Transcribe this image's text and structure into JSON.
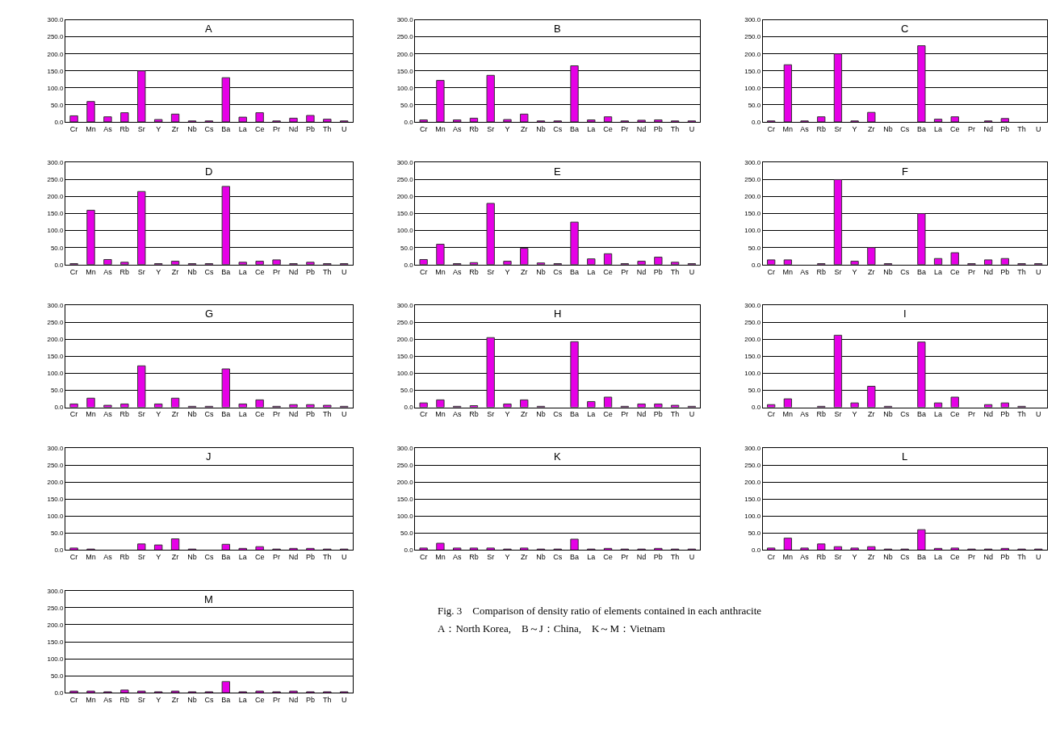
{
  "chart_data": [
    {
      "type": "bar",
      "title": "A",
      "categories": [
        "Cr",
        "Mn",
        "As",
        "Rb",
        "Sr",
        "Y",
        "Zr",
        "Nb",
        "Cs",
        "Ba",
        "La",
        "Ce",
        "Pr",
        "Nd",
        "Pb",
        "Th",
        "U"
      ],
      "values": [
        18,
        60,
        15,
        27,
        150,
        7,
        23,
        3,
        3,
        130,
        14,
        27,
        3,
        11,
        19,
        8,
        3
      ],
      "color": "#e600e6",
      "ylim": [
        0,
        300
      ],
      "yticks": [
        {
          "value": 0,
          "label": "0.0"
        },
        {
          "value": 50,
          "label": "50.0"
        },
        {
          "value": 100,
          "label": "100.0"
        },
        {
          "value": 150,
          "label": "150.0"
        },
        {
          "value": 200,
          "label": "200.0"
        },
        {
          "value": 250,
          "label": "250.0"
        },
        {
          "value": 300,
          "label": "300.0"
        }
      ],
      "grid": "y"
    },
    {
      "type": "bar",
      "title": "B",
      "categories": [
        "Cr",
        "Mn",
        "As",
        "Rb",
        "Sr",
        "Y",
        "Zr",
        "Nb",
        "Cs",
        "Ba",
        "La",
        "Ce",
        "Pr",
        "Nd",
        "Pb",
        "Th",
        "U"
      ],
      "values": [
        6,
        122,
        6,
        11,
        137,
        7,
        23,
        3,
        3,
        165,
        6,
        15,
        3,
        5,
        6,
        3,
        3
      ],
      "color": "#e600e6",
      "ylim": [
        0,
        300
      ],
      "yticks": [
        {
          "value": 0,
          "label": "0.0"
        },
        {
          "value": 50,
          "label": "50.0"
        },
        {
          "value": 100,
          "label": "100.0"
        },
        {
          "value": 150,
          "label": "150.0"
        },
        {
          "value": 200,
          "label": "200.0"
        },
        {
          "value": 250,
          "label": "250.0"
        },
        {
          "value": 300,
          "label": "300.0"
        }
      ],
      "grid": "y"
    },
    {
      "type": "bar",
      "title": "C",
      "categories": [
        "Cr",
        "Mn",
        "As",
        "Rb",
        "Sr",
        "Y",
        "Zr",
        "Nb",
        "Cs",
        "Ba",
        "La",
        "Ce",
        "Pr",
        "Nd",
        "Pb",
        "Th",
        "U"
      ],
      "values": [
        3,
        168,
        3,
        15,
        200,
        3,
        28,
        0,
        0,
        224,
        8,
        15,
        0,
        3,
        10,
        0,
        0
      ],
      "color": "#e600e6",
      "ylim": [
        0,
        300
      ],
      "yticks": [
        {
          "value": 0,
          "label": "0.0"
        },
        {
          "value": 50,
          "label": "50.0"
        },
        {
          "value": 100,
          "label": "100.0"
        },
        {
          "value": 150,
          "label": "150.0"
        },
        {
          "value": 200,
          "label": "200.0"
        },
        {
          "value": 250,
          "label": "250.0"
        },
        {
          "value": 300,
          "label": "300.0"
        }
      ],
      "grid": "y"
    },
    {
      "type": "bar",
      "title": "D",
      "categories": [
        "Cr",
        "Mn",
        "As",
        "Rb",
        "Sr",
        "Y",
        "Zr",
        "Nb",
        "Cs",
        "Ba",
        "La",
        "Ce",
        "Pr",
        "Nd",
        "Pb",
        "Th",
        "U"
      ],
      "values": [
        3,
        160,
        15,
        7,
        215,
        3,
        10,
        3,
        3,
        230,
        7,
        10,
        14,
        3,
        7,
        3,
        3
      ],
      "color": "#e600e6",
      "ylim": [
        0,
        300
      ],
      "yticks": [
        {
          "value": 0,
          "label": "0.0"
        },
        {
          "value": 50,
          "label": "50.0"
        },
        {
          "value": 100,
          "label": "100.0"
        },
        {
          "value": 150,
          "label": "150.0"
        },
        {
          "value": 200,
          "label": "200.0"
        },
        {
          "value": 250,
          "label": "250.0"
        },
        {
          "value": 300,
          "label": "300.0"
        }
      ],
      "grid": "y"
    },
    {
      "type": "bar",
      "title": "E",
      "categories": [
        "Cr",
        "Mn",
        "As",
        "Rb",
        "Sr",
        "Y",
        "Zr",
        "Nb",
        "Cs",
        "Ba",
        "La",
        "Ce",
        "Pr",
        "Nd",
        "Pb",
        "Th",
        "U"
      ],
      "values": [
        15,
        60,
        3,
        6,
        180,
        10,
        48,
        5,
        3,
        125,
        17,
        32,
        3,
        10,
        22,
        7,
        3
      ],
      "color": "#e600e6",
      "ylim": [
        0,
        300
      ],
      "yticks": [
        {
          "value": 0,
          "label": "0.0"
        },
        {
          "value": 50,
          "label": "50.0"
        },
        {
          "value": 100,
          "label": "100.0"
        },
        {
          "value": 150,
          "label": "150.0"
        },
        {
          "value": 200,
          "label": "200.0"
        },
        {
          "value": 250,
          "label": "250.0"
        },
        {
          "value": 300,
          "label": "300.0"
        }
      ],
      "grid": "y"
    },
    {
      "type": "bar",
      "title": "F",
      "categories": [
        "Cr",
        "Mn",
        "As",
        "Rb",
        "Sr",
        "Y",
        "Zr",
        "Nb",
        "Cs",
        "Ba",
        "La",
        "Ce",
        "Pr",
        "Nd",
        "Pb",
        "Th",
        "U"
      ],
      "values": [
        14,
        14,
        0,
        3,
        250,
        10,
        50,
        3,
        0,
        150,
        18,
        35,
        3,
        14,
        18,
        3,
        3
      ],
      "color": "#e600e6",
      "ylim": [
        0,
        300
      ],
      "yticks": [
        {
          "value": 0,
          "label": "0.0"
        },
        {
          "value": 50,
          "label": "50.0"
        },
        {
          "value": 100,
          "label": "100.0"
        },
        {
          "value": 150,
          "label": "150.0"
        },
        {
          "value": 200,
          "label": "200.0"
        },
        {
          "value": 250,
          "label": "250.0"
        },
        {
          "value": 300,
          "label": "300.0"
        }
      ],
      "grid": "y"
    },
    {
      "type": "bar",
      "title": "G",
      "categories": [
        "Cr",
        "Mn",
        "As",
        "Rb",
        "Sr",
        "Y",
        "Zr",
        "Nb",
        "Cs",
        "Ba",
        "La",
        "Ce",
        "Pr",
        "Nd",
        "Pb",
        "Th",
        "U"
      ],
      "values": [
        10,
        27,
        6,
        10,
        122,
        10,
        27,
        3,
        3,
        113,
        10,
        22,
        3,
        8,
        8,
        6,
        3
      ],
      "color": "#e600e6",
      "ylim": [
        0,
        300
      ],
      "yticks": [
        {
          "value": 0,
          "label": "0.0"
        },
        {
          "value": 50,
          "label": "50.0"
        },
        {
          "value": 100,
          "label": "100.0"
        },
        {
          "value": 150,
          "label": "150.0"
        },
        {
          "value": 200,
          "label": "200.0"
        },
        {
          "value": 250,
          "label": "250.0"
        },
        {
          "value": 300,
          "label": "300.0"
        }
      ],
      "grid": "y"
    },
    {
      "type": "bar",
      "title": "H",
      "categories": [
        "Cr",
        "Mn",
        "As",
        "Rb",
        "Sr",
        "Y",
        "Zr",
        "Nb",
        "Cs",
        "Ba",
        "La",
        "Ce",
        "Pr",
        "Nd",
        "Pb",
        "Th",
        "U"
      ],
      "values": [
        13,
        22,
        3,
        5,
        205,
        10,
        22,
        3,
        0,
        193,
        17,
        30,
        3,
        10,
        10,
        6,
        3
      ],
      "color": "#e600e6",
      "ylim": [
        0,
        300
      ],
      "yticks": [
        {
          "value": 0,
          "label": "0.0"
        },
        {
          "value": 50,
          "label": "50.0"
        },
        {
          "value": 100,
          "label": "100.0"
        },
        {
          "value": 150,
          "label": "150.0"
        },
        {
          "value": 200,
          "label": "200.0"
        },
        {
          "value": 250,
          "label": "250.0"
        },
        {
          "value": 300,
          "label": "300.0"
        }
      ],
      "grid": "y"
    },
    {
      "type": "bar",
      "title": "I",
      "categories": [
        "Cr",
        "Mn",
        "As",
        "Rb",
        "Sr",
        "Y",
        "Zr",
        "Nb",
        "Cs",
        "Ba",
        "La",
        "Ce",
        "Pr",
        "Nd",
        "Pb",
        "Th",
        "U"
      ],
      "values": [
        8,
        25,
        0,
        3,
        212,
        13,
        62,
        3,
        0,
        192,
        13,
        30,
        0,
        8,
        13,
        3,
        0
      ],
      "color": "#e600e6",
      "ylim": [
        0,
        300
      ],
      "yticks": [
        {
          "value": 0,
          "label": "0.0"
        },
        {
          "value": 50,
          "label": "50.0"
        },
        {
          "value": 100,
          "label": "100.0"
        },
        {
          "value": 150,
          "label": "150.0"
        },
        {
          "value": 200,
          "label": "200.0"
        },
        {
          "value": 250,
          "label": "250.0"
        },
        {
          "value": 300,
          "label": "300.0"
        }
      ],
      "grid": "y"
    },
    {
      "type": "bar",
      "title": "J",
      "categories": [
        "Cr",
        "Mn",
        "As",
        "Rb",
        "Sr",
        "Y",
        "Zr",
        "Nb",
        "Cs",
        "Ba",
        "La",
        "Ce",
        "Pr",
        "Nd",
        "Pb",
        "Th",
        "U"
      ],
      "values": [
        6,
        3,
        0,
        0,
        18,
        15,
        33,
        3,
        0,
        17,
        5,
        10,
        3,
        5,
        5,
        3,
        3
      ],
      "color": "#e600e6",
      "ylim": [
        0,
        300
      ],
      "yticks": [
        {
          "value": 0,
          "label": "0.0"
        },
        {
          "value": 50,
          "label": "50.0"
        },
        {
          "value": 100,
          "label": "100.0"
        },
        {
          "value": 150,
          "label": "150.0"
        },
        {
          "value": 200,
          "label": "200.0"
        },
        {
          "value": 250,
          "label": "250.0"
        },
        {
          "value": 300,
          "label": "300.0"
        }
      ],
      "grid": "y"
    },
    {
      "type": "bar",
      "title": "K",
      "categories": [
        "Cr",
        "Mn",
        "As",
        "Rb",
        "Sr",
        "Y",
        "Zr",
        "Nb",
        "Cs",
        "Ba",
        "La",
        "Ce",
        "Pr",
        "Nd",
        "Pb",
        "Th",
        "U"
      ],
      "values": [
        6,
        20,
        6,
        6,
        6,
        3,
        6,
        3,
        3,
        32,
        3,
        5,
        3,
        3,
        5,
        3,
        3
      ],
      "color": "#e600e6",
      "ylim": [
        0,
        300
      ],
      "yticks": [
        {
          "value": 0,
          "label": "0.0"
        },
        {
          "value": 50,
          "label": "50.0"
        },
        {
          "value": 100,
          "label": "100.0"
        },
        {
          "value": 150,
          "label": "150.0"
        },
        {
          "value": 200,
          "label": "200.0"
        },
        {
          "value": 250,
          "label": "250.0"
        },
        {
          "value": 300,
          "label": "300.0"
        }
      ],
      "grid": "y"
    },
    {
      "type": "bar",
      "title": "L",
      "categories": [
        "Cr",
        "Mn",
        "As",
        "Rb",
        "Sr",
        "Y",
        "Zr",
        "Nb",
        "Cs",
        "Ba",
        "La",
        "Ce",
        "Pr",
        "Nd",
        "Pb",
        "Th",
        "U"
      ],
      "values": [
        6,
        35,
        6,
        18,
        10,
        6,
        10,
        3,
        3,
        60,
        5,
        6,
        3,
        3,
        5,
        3,
        3
      ],
      "color": "#e600e6",
      "ylim": [
        0,
        300
      ],
      "yticks": [
        {
          "value": 0,
          "label": "0.0"
        },
        {
          "value": 50,
          "label": "50.0"
        },
        {
          "value": 100,
          "label": "100.0"
        },
        {
          "value": 150,
          "label": "150.0"
        },
        {
          "value": 200,
          "label": "200.0"
        },
        {
          "value": 250,
          "label": "250.0"
        },
        {
          "value": 300,
          "label": "300.0"
        }
      ],
      "grid": "y"
    },
    {
      "type": "bar",
      "title": "M",
      "categories": [
        "Cr",
        "Mn",
        "As",
        "Rb",
        "Sr",
        "Y",
        "Zr",
        "Nb",
        "Cs",
        "Ba",
        "La",
        "Ce",
        "Pr",
        "Nd",
        "Pb",
        "Th",
        "U"
      ],
      "values": [
        5,
        5,
        3,
        8,
        5,
        3,
        5,
        3,
        3,
        33,
        3,
        5,
        3,
        5,
        3,
        3,
        3
      ],
      "color": "#e600e6",
      "ylim": [
        0,
        300
      ],
      "yticks": [
        {
          "value": 0,
          "label": "0.0"
        },
        {
          "value": 50,
          "label": "50.0"
        },
        {
          "value": 100,
          "label": "100.0"
        },
        {
          "value": 150,
          "label": "150.0"
        },
        {
          "value": 200,
          "label": "200.0"
        },
        {
          "value": 250,
          "label": "250.0"
        },
        {
          "value": 300,
          "label": "300.0"
        }
      ],
      "grid": "y",
      "annotations": [
        "Fig. 3　Comparison of density ratio of elements contained in each anthracite",
        "A：North Korea,　B～J：China,　K～M：Vietnam"
      ]
    }
  ]
}
